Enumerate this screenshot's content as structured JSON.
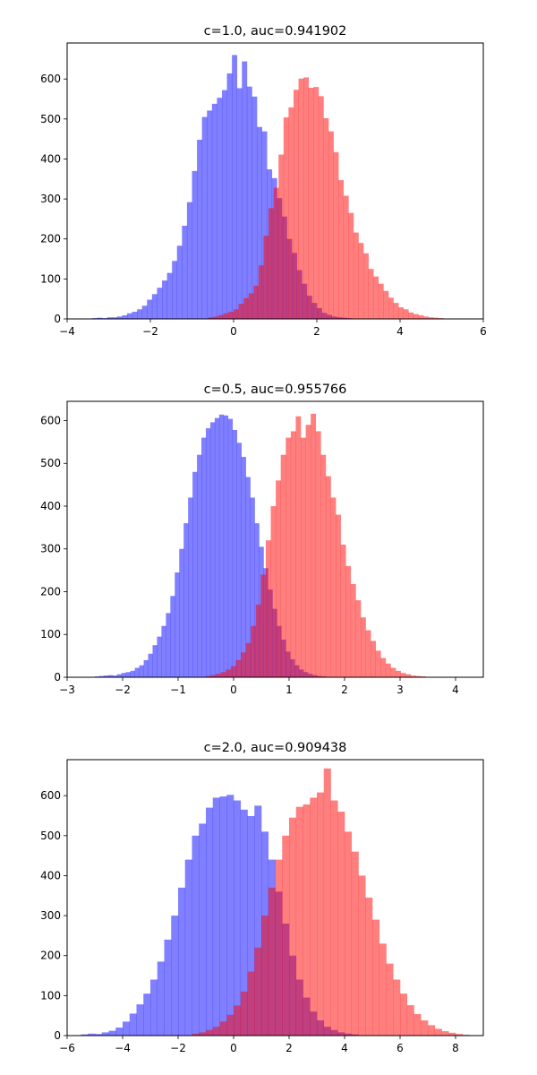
{
  "chart_data": [
    {
      "type": "histogram",
      "title": "c=1.0, auc=0.941902",
      "xlim": [
        -4,
        6
      ],
      "ylim": [
        0,
        690
      ],
      "xticks": [
        "−4",
        "−2",
        "0",
        "2",
        "4",
        "6"
      ],
      "xtick_values": [
        -4,
        -2,
        0,
        2,
        4,
        6
      ],
      "yticks": [
        "0",
        "100",
        "200",
        "300",
        "400",
        "500",
        "600"
      ],
      "ytick_values": [
        0,
        100,
        200,
        300,
        400,
        500,
        600
      ],
      "series": [
        {
          "color": "#0000ff",
          "bin_edges": [
            -3.4,
            -3.28,
            -3.16,
            -3.04,
            -2.92,
            -2.8,
            -2.68,
            -2.56,
            -2.44,
            -2.32,
            -2.2,
            -2.08,
            -1.96,
            -1.84,
            -1.72,
            -1.6,
            -1.48,
            -1.36,
            -1.24,
            -1.12,
            -1.0,
            -0.88,
            -0.76,
            -0.64,
            -0.52,
            -0.4,
            -0.28,
            -0.16,
            -0.04,
            0.08,
            0.2,
            0.32,
            0.44,
            0.56,
            0.68,
            0.8,
            0.92,
            1.04,
            1.16,
            1.28,
            1.4,
            1.52,
            1.64,
            1.76,
            1.88,
            2.0,
            2.12,
            2.24,
            2.36,
            2.48,
            2.6,
            2.72,
            2.84,
            2.96,
            3.08,
            3.2,
            3.32
          ],
          "counts": [
            2,
            3,
            2,
            4,
            4,
            6,
            9,
            14,
            18,
            24,
            33,
            48,
            62,
            78,
            96,
            115,
            145,
            183,
            233,
            292,
            370,
            448,
            505,
            521,
            538,
            553,
            572,
            614,
            660,
            577,
            644,
            581,
            556,
            480,
            469,
            374,
            352,
            302,
            256,
            200,
            165,
            122,
            88,
            58,
            40,
            27,
            15,
            10,
            6,
            4,
            3,
            2,
            1,
            1,
            1,
            0
          ]
        },
        {
          "color": "#ff0000",
          "bin_edges": [
            -0.6,
            -0.48,
            -0.36,
            -0.24,
            -0.12,
            0.0,
            0.12,
            0.24,
            0.36,
            0.48,
            0.6,
            0.72,
            0.84,
            0.96,
            1.08,
            1.2,
            1.32,
            1.44,
            1.56,
            1.68,
            1.8,
            1.92,
            2.04,
            2.16,
            2.28,
            2.4,
            2.52,
            2.64,
            2.76,
            2.88,
            3.0,
            3.12,
            3.24,
            3.36,
            3.48,
            3.6,
            3.72,
            3.84,
            3.96,
            4.08,
            4.2,
            4.32,
            4.44,
            4.56,
            4.68,
            4.8,
            4.92,
            5.04,
            5.16,
            5.28,
            5.4
          ],
          "counts": [
            4,
            6,
            10,
            14,
            18,
            24,
            38,
            52,
            64,
            83,
            134,
            208,
            277,
            328,
            411,
            504,
            529,
            573,
            601,
            604,
            578,
            580,
            557,
            502,
            469,
            417,
            347,
            308,
            265,
            216,
            190,
            164,
            125,
            106,
            88,
            70,
            53,
            40,
            29,
            24,
            16,
            12,
            9,
            6,
            4,
            3,
            2,
            1,
            1,
            0
          ]
        }
      ]
    },
    {
      "type": "histogram",
      "title": "c=0.5, auc=0.955766",
      "xlim": [
        -3,
        4.5
      ],
      "ylim": [
        0,
        645
      ],
      "xticks": [
        "−3",
        "−2",
        "−1",
        "0",
        "1",
        "2",
        "3",
        "4"
      ],
      "xtick_values": [
        -3,
        -2,
        -1,
        0,
        1,
        2,
        3,
        4
      ],
      "yticks": [
        "0",
        "100",
        "200",
        "300",
        "400",
        "500",
        "600"
      ],
      "ytick_values": [
        0,
        100,
        200,
        300,
        400,
        500,
        600
      ],
      "series": [
        {
          "color": "#0000ff",
          "bin_edges": [
            -2.5,
            -2.42,
            -2.34,
            -2.26,
            -2.18,
            -2.1,
            -2.02,
            -1.94,
            -1.86,
            -1.78,
            -1.7,
            -1.62,
            -1.54,
            -1.46,
            -1.38,
            -1.3,
            -1.22,
            -1.14,
            -1.06,
            -0.98,
            -0.9,
            -0.82,
            -0.74,
            -0.66,
            -0.58,
            -0.5,
            -0.42,
            -0.34,
            -0.26,
            -0.18,
            -0.1,
            -0.02,
            0.06,
            0.14,
            0.22,
            0.3,
            0.38,
            0.46,
            0.54,
            0.62,
            0.7,
            0.78,
            0.86,
            0.94,
            1.02,
            1.1,
            1.18,
            1.26,
            1.34,
            1.42,
            1.5,
            1.58,
            1.66,
            1.74,
            1.82,
            1.9,
            1.98,
            2.06,
            2.14,
            2.22
          ],
          "counts": [
            2,
            3,
            4,
            5,
            4,
            7,
            10,
            12,
            15,
            22,
            28,
            40,
            55,
            75,
            95,
            120,
            150,
            190,
            245,
            300,
            360,
            420,
            480,
            520,
            560,
            582,
            596,
            606,
            614,
            612,
            604,
            578,
            548,
            515,
            468,
            420,
            360,
            305,
            255,
            205,
            160,
            120,
            88,
            60,
            42,
            28,
            18,
            12,
            8,
            5,
            3,
            2,
            1,
            1,
            1,
            1,
            0,
            0,
            0
          ]
        },
        {
          "color": "#ff0000",
          "bin_edges": [
            -0.5,
            -0.41,
            -0.32,
            -0.23,
            -0.14,
            -0.05,
            0.04,
            0.13,
            0.22,
            0.31,
            0.4,
            0.49,
            0.58,
            0.67,
            0.76,
            0.85,
            0.94,
            1.03,
            1.12,
            1.21,
            1.3,
            1.39,
            1.48,
            1.57,
            1.66,
            1.75,
            1.84,
            1.93,
            2.02,
            2.11,
            2.2,
            2.29,
            2.38,
            2.47,
            2.56,
            2.65,
            2.74,
            2.83,
            2.92,
            3.01,
            3.1,
            3.19,
            3.28,
            3.37,
            3.46,
            3.55,
            3.64
          ],
          "counts": [
            3,
            5,
            8,
            12,
            18,
            26,
            40,
            58,
            80,
            120,
            170,
            240,
            320,
            400,
            460,
            520,
            560,
            575,
            610,
            560,
            590,
            616,
            575,
            520,
            470,
            420,
            380,
            310,
            260,
            218,
            180,
            140,
            110,
            85,
            62,
            45,
            32,
            22,
            15,
            10,
            7,
            4,
            3,
            2,
            1,
            0
          ]
        }
      ]
    },
    {
      "type": "histogram",
      "title": "c=2.0, auc=0.909438",
      "xlim": [
        -6,
        9
      ],
      "ylim": [
        0,
        690
      ],
      "xticks": [
        "−6",
        "−4",
        "−2",
        "0",
        "2",
        "4",
        "6",
        "8"
      ],
      "xtick_values": [
        -6,
        -4,
        -2,
        0,
        2,
        4,
        6,
        8
      ],
      "yticks": [
        "0",
        "100",
        "200",
        "300",
        "400",
        "500",
        "600"
      ],
      "ytick_values": [
        0,
        100,
        200,
        300,
        400,
        500,
        600
      ],
      "series": [
        {
          "color": "#0000ff",
          "bin_edges": [
            -5.5,
            -5.25,
            -5.0,
            -4.75,
            -4.5,
            -4.25,
            -4.0,
            -3.75,
            -3.5,
            -3.25,
            -3.0,
            -2.75,
            -2.5,
            -2.25,
            -2.0,
            -1.75,
            -1.5,
            -1.25,
            -1.0,
            -0.75,
            -0.5,
            -0.25,
            0.0,
            0.25,
            0.5,
            0.75,
            1.0,
            1.25,
            1.5,
            1.75,
            2.0,
            2.25,
            2.5,
            2.75,
            3.0,
            3.25,
            3.5,
            3.75,
            4.0,
            4.25,
            4.5,
            4.75
          ],
          "counts": [
            3,
            5,
            4,
            8,
            12,
            20,
            35,
            55,
            78,
            105,
            140,
            185,
            240,
            300,
            370,
            440,
            500,
            530,
            570,
            595,
            598,
            602,
            588,
            565,
            549,
            575,
            510,
            440,
            360,
            280,
            200,
            140,
            95,
            60,
            38,
            22,
            14,
            8,
            5,
            3,
            1
          ]
        },
        {
          "color": "#ff0000",
          "bin_edges": [
            -1.5,
            -1.25,
            -1.0,
            -0.75,
            -0.5,
            -0.25,
            0.0,
            0.25,
            0.5,
            0.75,
            1.0,
            1.25,
            1.5,
            1.75,
            2.0,
            2.25,
            2.5,
            2.75,
            3.0,
            3.25,
            3.5,
            3.75,
            4.0,
            4.25,
            4.5,
            4.75,
            5.0,
            5.25,
            5.5,
            5.75,
            6.0,
            6.25,
            6.5,
            6.75,
            7.0,
            7.25,
            7.5,
            7.75,
            8.0,
            8.25,
            8.5
          ],
          "counts": [
            5,
            8,
            14,
            22,
            35,
            52,
            75,
            110,
            160,
            220,
            300,
            370,
            440,
            500,
            545,
            572,
            578,
            595,
            608,
            668,
            588,
            560,
            510,
            460,
            400,
            345,
            290,
            230,
            180,
            140,
            105,
            76,
            54,
            38,
            26,
            17,
            11,
            7,
            4,
            2
          ]
        }
      ]
    }
  ]
}
